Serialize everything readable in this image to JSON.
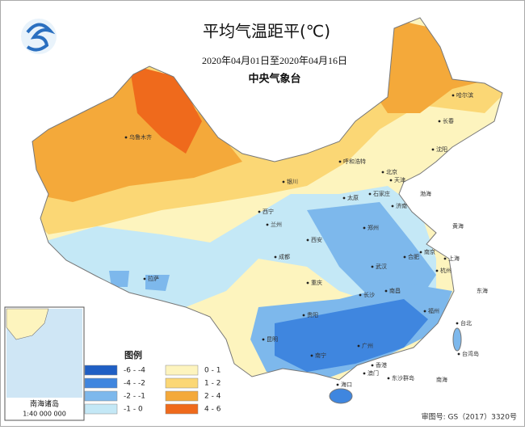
{
  "header": {
    "title": "平均气温距平(℃)",
    "date_range": "2020年04月01日至2020年04月16日",
    "issuer": "中央气象台"
  },
  "map": {
    "labels": [
      {
        "text": "乌鲁木齐"
      },
      {
        "text": "哈尔滨"
      },
      {
        "text": "长春"
      },
      {
        "text": "沈阳"
      },
      {
        "text": "呼和浩特"
      },
      {
        "text": "北京"
      },
      {
        "text": "天津"
      },
      {
        "text": "石家庄"
      },
      {
        "text": "太原"
      },
      {
        "text": "银川"
      },
      {
        "text": "西宁"
      },
      {
        "text": "兰州"
      },
      {
        "text": "西安"
      },
      {
        "text": "济南"
      },
      {
        "text": "郑州"
      },
      {
        "text": "合肥"
      },
      {
        "text": "南京"
      },
      {
        "text": "上海"
      },
      {
        "text": "杭州"
      },
      {
        "text": "武汉"
      },
      {
        "text": "成都"
      },
      {
        "text": "拉萨"
      },
      {
        "text": "重庆"
      },
      {
        "text": "长沙"
      },
      {
        "text": "南昌"
      },
      {
        "text": "福州"
      },
      {
        "text": "贵阳"
      },
      {
        "text": "昆明"
      },
      {
        "text": "南宁"
      },
      {
        "text": "广州"
      },
      {
        "text": "香港"
      },
      {
        "text": "澳门"
      },
      {
        "text": "海口"
      },
      {
        "text": "台北"
      },
      {
        "text": "台湾岛"
      },
      {
        "text": "东沙群岛"
      },
      {
        "text": "渤海"
      },
      {
        "text": "黄海"
      },
      {
        "text": "东海"
      },
      {
        "text": "南海"
      }
    ]
  },
  "legend": {
    "title": "图例",
    "items": [
      {
        "label": "-6 - -4",
        "color": "#1f5fc4"
      },
      {
        "label": "-4 - -2",
        "color": "#3f86df"
      },
      {
        "label": "-2 - -1",
        "color": "#7db8ec"
      },
      {
        "label": "-1 - 0",
        "color": "#c4e8f6"
      },
      {
        "label": "0 - 1",
        "color": "#fdf4be"
      },
      {
        "label": "1 - 2",
        "color": "#fbd775"
      },
      {
        "label": "2 - 4",
        "color": "#f4a93a"
      },
      {
        "label": "4 - 6",
        "color": "#ef6a1c"
      }
    ]
  },
  "inset": {
    "title": "南海诸岛",
    "scale": "1:40 000 000"
  },
  "footer": {
    "approval": "审图号: GS（2017）3320号"
  }
}
